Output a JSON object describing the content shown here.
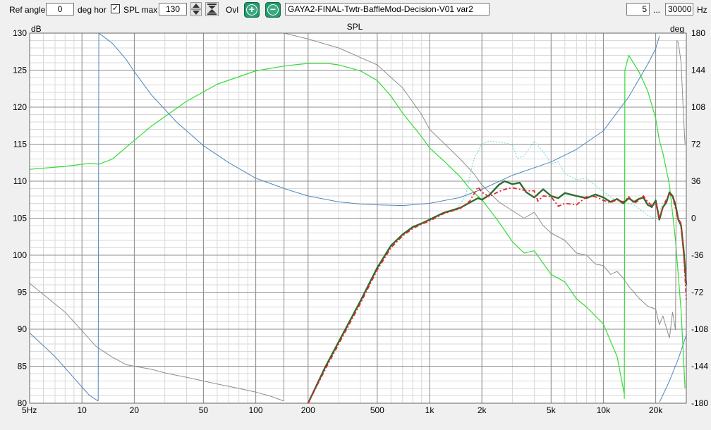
{
  "toolbar": {
    "ref_angle_label": "Ref angle",
    "ref_angle_value": "0",
    "ref_angle_unit": "deg hor",
    "spl_max_checkbox": "✓",
    "spl_max_label": "SPL max",
    "spl_max_value": "130",
    "ovl_label": "Ovl",
    "add_symbol": "+",
    "remove_symbol": "−",
    "design_name": "GAYA2-FINAL-Twtr-BaffleMod-Decision-V01 var2",
    "freq_min": "5",
    "freq_sep": "...",
    "freq_max": "30000",
    "freq_unit": "Hz"
  },
  "colors": {
    "plot_bg": "#ffffff",
    "grid_major": "#8c8c8c",
    "grid_minor": "#d9d9d9",
    "green": "#33dd33",
    "blue": "#4f86b8",
    "grey": "#8e8e8e",
    "cyan_dotted": "#7fdede",
    "dark_green": "#2e6b2e",
    "red_dashed": "#e8222a"
  },
  "chart_data": {
    "type": "line",
    "title": "SPL",
    "ylabel": "dB",
    "y2label": "deg",
    "xscale": "log",
    "xlim": [
      5,
      30000
    ],
    "ylim": [
      80,
      130
    ],
    "y2lim": [
      -180,
      180
    ],
    "x_ticks": [
      5,
      10,
      20,
      50,
      100,
      200,
      500,
      1000,
      2000,
      5000,
      10000,
      20000
    ],
    "x_tick_labels": [
      "5Hz",
      "10",
      "20",
      "50",
      "100",
      "200",
      "500",
      "1k",
      "2k",
      "5k",
      "10k",
      "20k"
    ],
    "y_ticks": [
      80,
      85,
      90,
      95,
      100,
      105,
      110,
      115,
      120,
      125,
      130
    ],
    "y_tick_labels": [
      "80",
      "85",
      "90",
      "95",
      "100",
      "105",
      "110",
      "115",
      "120",
      "125",
      "130"
    ],
    "y2_ticks": [
      -180,
      -144,
      -108,
      -72,
      -36,
      0,
      36,
      72,
      108,
      144,
      180
    ],
    "y2_tick_labels": [
      "-180",
      "-144",
      "-108",
      "-72",
      "-36",
      "0",
      "36",
      "72",
      "108",
      "144",
      "180"
    ],
    "grid": true,
    "series": [
      {
        "color": "#33dd33",
        "style": "solid",
        "width": 1.2,
        "axis": "left",
        "x": [
          5,
          8,
          11,
          12.5,
          15,
          18,
          25,
          40,
          60,
          100,
          150,
          200,
          260,
          300,
          400,
          500,
          600,
          700,
          800,
          900,
          1000,
          1200,
          1500,
          1700,
          2000,
          2500,
          3000,
          3500,
          4000,
          5000,
          6000,
          7000,
          8000,
          10000,
          12000,
          13200
        ],
        "y": [
          111.6,
          112.0,
          112.4,
          112.3,
          113.0,
          114.6,
          117.4,
          120.8,
          123.1,
          124.9,
          125.6,
          125.9,
          125.9,
          125.7,
          124.9,
          123.6,
          121.5,
          119.2,
          117.5,
          116.0,
          114.5,
          112.8,
          110.6,
          109.0,
          107.5,
          104.5,
          101.8,
          100.3,
          100.6,
          97.4,
          96.4,
          94.1,
          93.0,
          90.7,
          86.3,
          81.2
        ]
      },
      {
        "color": "#33dd33",
        "style": "solid",
        "width": 1.2,
        "axis": "left",
        "x": [
          13200,
          13300,
          14000,
          16000,
          18000,
          20000,
          21000,
          22000,
          24000,
          26000,
          28000,
          29500
        ],
        "y": [
          80.6,
          125.0,
          127.0,
          124.8,
          122.2,
          118.5,
          115.5,
          113.8,
          109.5,
          102.0,
          92.5,
          82.0
        ]
      },
      {
        "color": "#4f86b8",
        "style": "solid",
        "width": 1.0,
        "axis": "left",
        "x": [
          5,
          7,
          9,
          11,
          12.4
        ],
        "y": [
          89.5,
          86.3,
          83.4,
          81.1,
          80.3
        ]
      },
      {
        "color": "#4f86b8",
        "style": "solid",
        "width": 1.0,
        "axis": "left",
        "x": [
          12.4,
          12.5,
          15,
          18,
          20,
          25,
          35,
          50,
          70,
          100,
          150,
          200,
          300,
          400,
          500,
          700,
          1000,
          1500,
          2000,
          3000,
          5000,
          7000,
          10000,
          14000,
          18000,
          20000,
          21000
        ],
        "y": [
          80.3,
          130.0,
          128.6,
          126.4,
          124.8,
          121.7,
          118.0,
          114.8,
          112.5,
          110.4,
          108.9,
          108.0,
          107.2,
          106.9,
          106.8,
          106.7,
          107.0,
          107.8,
          108.9,
          110.8,
          112.6,
          114.3,
          116.8,
          121.4,
          125.8,
          127.9,
          129.6
        ]
      },
      {
        "color": "#4f86b8",
        "style": "solid",
        "width": 1.0,
        "axis": "left",
        "x": [
          21000,
          21100,
          24000,
          27000,
          30000
        ],
        "y": [
          80.2,
          80.2,
          83.0,
          86.0,
          89.2
        ]
      },
      {
        "color": "#8e8e8e",
        "style": "solid",
        "width": 1.0,
        "axis": "left",
        "x": [
          5,
          8,
          10,
          12,
          15,
          18,
          20,
          25,
          30,
          40,
          60,
          80,
          100,
          120,
          145
        ],
        "y": [
          96.2,
          92.3,
          89.8,
          87.7,
          86.2,
          85.2,
          85.0,
          84.6,
          84.1,
          83.5,
          82.6,
          82.0,
          81.5,
          81.0,
          80.3
        ]
      },
      {
        "color": "#8e8e8e",
        "style": "solid",
        "width": 1.0,
        "axis": "left",
        "x": [
          145,
          146,
          200,
          300,
          500,
          700,
          900,
          1000,
          1200,
          1500,
          1800,
          2000,
          2500,
          3000,
          3500,
          4000,
          4500,
          5000,
          6000,
          7000,
          8000,
          9000,
          10000,
          11000,
          12000,
          13000,
          14000,
          16000,
          18000,
          20000,
          21000,
          22000,
          24000,
          25000,
          26000
        ],
        "y": [
          80.3,
          130.0,
          129.2,
          128.0,
          125.7,
          122.6,
          119.0,
          117.0,
          115.2,
          113.0,
          111.0,
          109.5,
          107.2,
          106.0,
          105.0,
          105.8,
          104.0,
          103.0,
          102.0,
          100.3,
          100.0,
          98.8,
          98.6,
          97.4,
          97.8,
          96.9,
          95.8,
          94.2,
          93.1,
          92.7,
          90.6,
          91.8,
          88.8,
          92.3,
          89.9
        ]
      },
      {
        "color": "#8e8e8e",
        "style": "solid",
        "width": 1.0,
        "axis": "left",
        "x": [
          26000,
          26500,
          27000,
          28000,
          29000,
          29500
        ],
        "y": [
          89.9,
          129.0,
          128.7,
          126.0,
          118.0,
          115.0
        ]
      },
      {
        "color": "#7fdede",
        "style": "dotted",
        "width": 1.2,
        "axis": "left",
        "x": [
          1400,
          1600,
          1700,
          1800,
          2000,
          2200,
          2500,
          2800,
          3000,
          3200,
          3500,
          4000,
          4500,
          5000,
          5500,
          6000,
          7000,
          8000,
          9000,
          10000,
          12000,
          15000,
          18000,
          20000,
          22000,
          24000
        ],
        "y": [
          106.0,
          107.8,
          110.5,
          113.0,
          115.0,
          115.4,
          115.3,
          115.1,
          114.8,
          113.1,
          113.4,
          115.4,
          114.0,
          112.4,
          112.6,
          111.0,
          110.2,
          110.4,
          109.4,
          108.6,
          107.2,
          106.8,
          105.4,
          104.9,
          106.9,
          108.2
        ]
      },
      {
        "color": "#2e6b2e",
        "style": "solid",
        "width": 2.4,
        "axis": "left",
        "x": [
          200,
          250,
          300,
          400,
          500,
          600,
          700,
          800,
          900,
          1000,
          1200,
          1500,
          1700,
          1900,
          2000,
          2200,
          2500,
          2700,
          3000,
          3300,
          3600,
          4000,
          4500,
          5000,
          5500,
          6000,
          7000,
          8000,
          9000,
          10000,
          11000,
          12000,
          13000,
          14000,
          15000,
          16000,
          17000,
          18000,
          19000,
          20000,
          21000,
          22000,
          23000,
          24000,
          25000,
          26000,
          27000,
          28000,
          29000,
          30000
        ],
        "y": [
          80.0,
          84.8,
          88.3,
          93.8,
          98.3,
          101.3,
          102.8,
          103.8,
          104.3,
          104.8,
          105.7,
          106.4,
          107.1,
          107.7,
          107.5,
          108.1,
          109.5,
          110.0,
          109.6,
          109.8,
          108.5,
          107.8,
          108.9,
          108.0,
          107.7,
          108.4,
          108.0,
          107.7,
          108.2,
          107.8,
          107.2,
          107.6,
          107.0,
          107.7,
          107.2,
          107.6,
          107.8,
          106.8,
          106.5,
          107.4,
          104.8,
          106.5,
          107.1,
          108.5,
          108.0,
          106.8,
          104.8,
          104.0,
          100.5,
          96.0
        ]
      },
      {
        "color": "#e8222a",
        "style": "dashed",
        "width": 1.8,
        "axis": "left",
        "x": [
          200,
          250,
          300,
          400,
          500,
          600,
          700,
          800,
          900,
          1000,
          1200,
          1500,
          1700,
          1900,
          2000,
          2200,
          2500,
          2800,
          3000,
          3300,
          3600,
          4000,
          4200,
          4500,
          5000,
          5500,
          6000,
          7000,
          8000,
          9000,
          10000,
          11000,
          12000,
          13000,
          14000,
          15000,
          16000,
          17000,
          18000,
          19000,
          20000,
          21000,
          22000,
          23000,
          24000,
          25000,
          26000,
          27000,
          28000,
          29000,
          30000
        ],
        "y": [
          80.0,
          84.5,
          88.0,
          93.5,
          98.0,
          101.0,
          102.6,
          103.6,
          104.2,
          104.6,
          105.6,
          106.3,
          107.3,
          109.2,
          108.5,
          107.9,
          108.6,
          109.0,
          109.1,
          108.9,
          108.7,
          108.7,
          107.3,
          108.0,
          107.9,
          106.6,
          107.0,
          106.8,
          107.9,
          107.9,
          107.4,
          107.1,
          107.5,
          107.2,
          107.9,
          107.0,
          107.4,
          108.0,
          107.2,
          106.7,
          107.0,
          105.0,
          106.4,
          107.5,
          108.3,
          107.9,
          106.3,
          104.9,
          104.3,
          100.0,
          94.0
        ]
      }
    ]
  }
}
